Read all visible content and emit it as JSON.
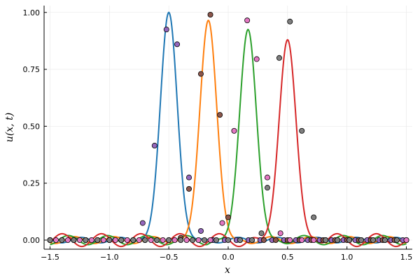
{
  "chart_data": {
    "type": "line",
    "xlabel": "x",
    "ylabel": "u(x, t)",
    "xlim": [
      -1.55,
      1.55
    ],
    "ylim": [
      -0.04,
      1.03
    ],
    "xticks": [
      -1.5,
      -1.0,
      -0.5,
      0.0,
      0.5,
      1.0,
      1.5
    ],
    "xtick_labels": [
      "−1.5",
      "−1.0",
      "−0.5",
      "0.0",
      "0.5",
      "1.0",
      "1.5"
    ],
    "yticks": [
      0.0,
      0.25,
      0.5,
      0.75,
      1.0
    ],
    "ytick_labels": [
      "0.00",
      "0.25",
      "0.50",
      "0.75",
      "1.00"
    ],
    "grid": true,
    "legend": "none",
    "series": [
      {
        "color": "#1f77b4",
        "center": -0.5,
        "amplitude": 1.0,
        "width": 0.1,
        "ripple_amp": 0.012,
        "ripple_freq": 19
      },
      {
        "color": "#ff7f0e",
        "center": -0.167,
        "amplitude": 0.965,
        "width": 0.1,
        "ripple_amp": 0.015,
        "ripple_freq": 19
      },
      {
        "color": "#2ca02c",
        "center": 0.167,
        "amplitude": 0.925,
        "width": 0.1,
        "ripple_amp": 0.02,
        "ripple_freq": 19
      },
      {
        "color": "#d62728",
        "center": 0.5,
        "amplitude": 0.88,
        "width": 0.1,
        "ripple_amp": 0.028,
        "ripple_freq": 19
      }
    ],
    "scatter_series": [
      {
        "color": "#9467bd",
        "x": [
          -1.5,
          -1.4,
          -1.3,
          -1.2,
          -1.1,
          -1.0,
          -0.9,
          -0.8,
          -0.72,
          -0.62,
          -0.52,
          -0.43,
          -0.33,
          -0.23,
          -0.13,
          -0.03,
          0.07,
          0.17,
          0.27,
          0.37,
          0.47,
          0.57,
          0.67,
          0.77,
          0.87,
          0.97,
          1.07,
          1.17,
          1.27,
          1.37,
          1.47
        ],
        "y": [
          0.0,
          0.0,
          0.0,
          0.0,
          0.0,
          0.0,
          0.0,
          0.0,
          0.075,
          0.415,
          0.925,
          0.86,
          0.275,
          0.04,
          0.0,
          0.0,
          0.0,
          0.0,
          0.0,
          0.0,
          0.0,
          0.0,
          0.0,
          0.0,
          0.0,
          0.0,
          0.0,
          0.0,
          0.0,
          0.0,
          0.0
        ]
      },
      {
        "color": "#8c564b",
        "x": [
          -1.5,
          -1.4,
          -1.3,
          -1.2,
          -1.1,
          -1.0,
          -0.9,
          -0.8,
          -0.7,
          -0.6,
          -0.5,
          -0.4,
          -0.33,
          -0.23,
          -0.15,
          -0.07,
          0.0,
          0.1,
          0.2,
          0.3,
          0.4,
          0.5,
          0.6,
          0.7,
          0.8,
          0.9,
          1.0,
          1.1,
          1.2,
          1.3,
          1.4,
          1.5
        ],
        "y": [
          0.0,
          0.0,
          0.0,
          0.0,
          0.0,
          0.0,
          0.0,
          0.0,
          0.0,
          0.0,
          0.0,
          0.01,
          0.225,
          0.73,
          0.99,
          0.55,
          0.1,
          0.0,
          0.0,
          0.0,
          0.0,
          0.0,
          0.0,
          0.0,
          0.0,
          0.0,
          0.0,
          0.0,
          0.0,
          0.0,
          0.0,
          0.0
        ]
      },
      {
        "color": "#e377c2",
        "x": [
          -1.45,
          -1.35,
          -1.25,
          -1.15,
          -1.05,
          -0.95,
          -0.85,
          -0.75,
          -0.65,
          -0.55,
          -0.45,
          -0.35,
          -0.25,
          -0.15,
          -0.05,
          0.05,
          0.16,
          0.24,
          0.33,
          0.44,
          0.52,
          0.62,
          0.72,
          0.82,
          0.92,
          1.02,
          1.12,
          1.22,
          1.32,
          1.42,
          1.5
        ],
        "y": [
          0.0,
          0.0,
          0.0,
          0.0,
          0.0,
          0.0,
          0.0,
          0.0,
          0.0,
          0.0,
          0.0,
          0.0,
          0.0,
          0.0,
          0.075,
          0.48,
          0.965,
          0.795,
          0.275,
          0.03,
          0.0,
          0.0,
          0.0,
          0.0,
          0.0,
          0.0,
          0.0,
          0.0,
          0.0,
          0.0,
          0.0
        ]
      },
      {
        "color": "#7f7f7f",
        "x": [
          -1.5,
          -1.4,
          -1.3,
          -1.2,
          -1.1,
          -1.0,
          -0.9,
          -0.8,
          -0.7,
          -0.6,
          -0.5,
          -0.4,
          -0.3,
          -0.2,
          -0.1,
          0.0,
          0.1,
          0.2,
          0.28,
          0.33,
          0.43,
          0.52,
          0.62,
          0.72,
          0.82,
          0.92,
          1.02,
          1.12,
          1.22,
          1.32,
          1.42
        ],
        "y": [
          0.0,
          0.0,
          0.0,
          0.0,
          0.0,
          0.0,
          0.0,
          0.0,
          0.0,
          0.0,
          0.0,
          0.0,
          0.0,
          0.0,
          0.0,
          0.0,
          0.0,
          0.0,
          0.03,
          0.23,
          0.8,
          0.96,
          0.48,
          0.1,
          0.0,
          0.0,
          0.0,
          0.0,
          0.0,
          0.0,
          0.0
        ]
      }
    ]
  }
}
